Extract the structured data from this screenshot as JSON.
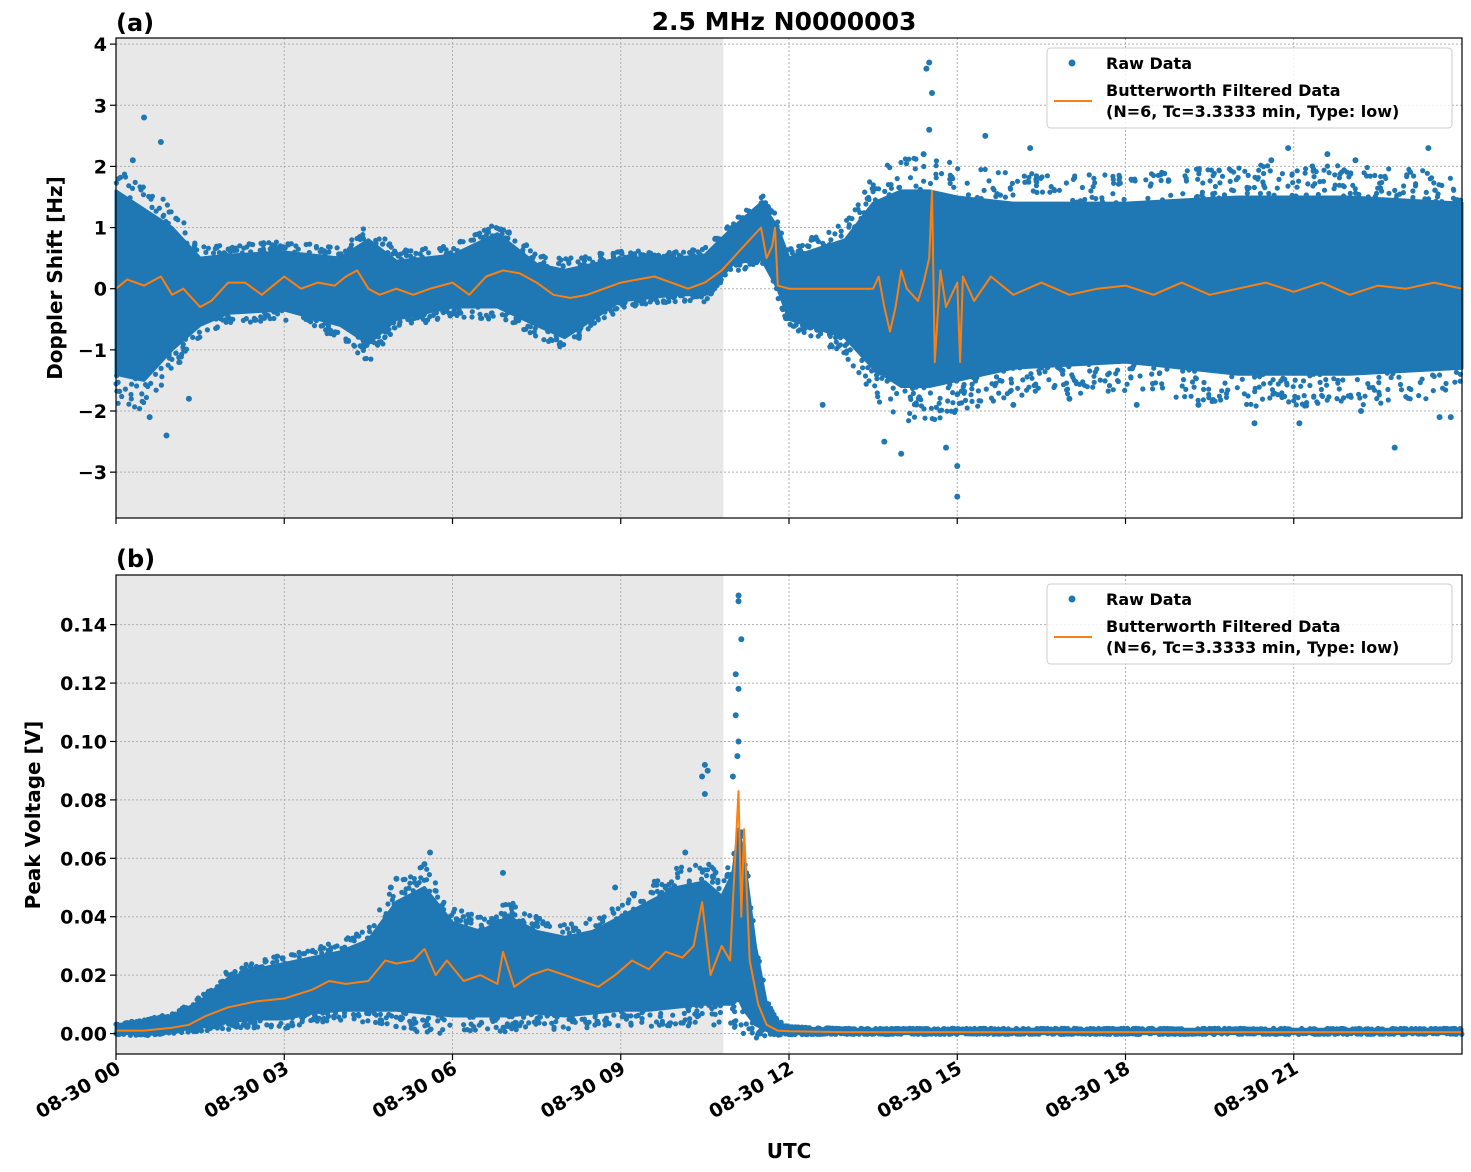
{
  "figure_title": "2.5 MHz N0000003",
  "x_axis": {
    "label": "UTC",
    "ticks": [
      "08-30 00",
      "08-30 03",
      "08-30 06",
      "08-30 09",
      "08-30 12",
      "08-30 15",
      "08-30 18",
      "08-30 21"
    ],
    "tick_hours": [
      0,
      3,
      6,
      9,
      12,
      15,
      18,
      21
    ],
    "range_hours": [
      0,
      24
    ]
  },
  "night_shading": {
    "start_hour": 0,
    "end_hour": 10.83,
    "color": "#e8e8e8"
  },
  "colors": {
    "raw": "#1f77b4",
    "filtered": "#ff7f0e",
    "grid": "#b0b0b0"
  },
  "legend": {
    "raw": "Raw Data",
    "filtered_line1": "Butterworth Filtered Data",
    "filtered_line2": "(N=6, Tc=3.3333 min, Type: low)"
  },
  "chart_data": [
    {
      "type": "scatter",
      "panel": "(a)",
      "title": "2.5 MHz N0000003",
      "xlabel": "UTC",
      "ylabel": "Doppler Shift [Hz]",
      "ylim": [
        -3.75,
        4.1
      ],
      "yticks": [
        -3,
        -2,
        -1,
        0,
        1,
        2,
        3,
        4
      ],
      "ytick_labels": [
        "−3",
        "−2",
        "−1",
        "0",
        "1",
        "2",
        "3",
        "4"
      ],
      "grid": true,
      "legend_position": "top-right",
      "series": [
        {
          "name": "Raw Data",
          "kind": "scatter-band",
          "x_hours": [
            0,
            0.5,
            1,
            1.5,
            2,
            3,
            4,
            4.5,
            5,
            6,
            6.8,
            7.5,
            8,
            9,
            10,
            10.5,
            11,
            11.5,
            11.8,
            12,
            13,
            13.5,
            14,
            14.5,
            15,
            16,
            18,
            20,
            22,
            24
          ],
          "upper": [
            1.6,
            1.3,
            1.0,
            0.5,
            0.55,
            0.6,
            0.5,
            0.8,
            0.45,
            0.55,
            0.9,
            0.4,
            0.3,
            0.5,
            0.5,
            0.55,
            1.0,
            1.4,
            1.0,
            0.5,
            0.8,
            1.4,
            1.6,
            1.6,
            1.5,
            1.4,
            1.4,
            1.5,
            1.5,
            1.4
          ],
          "lower": [
            -1.4,
            -1.5,
            -1.0,
            -0.6,
            -0.4,
            -0.35,
            -0.6,
            -0.9,
            -0.5,
            -0.3,
            -0.3,
            -0.6,
            -0.8,
            -0.2,
            -0.1,
            -0.1,
            0.4,
            0.5,
            0.0,
            -0.5,
            -0.8,
            -1.3,
            -1.6,
            -1.6,
            -1.5,
            -1.3,
            -1.2,
            -1.4,
            -1.4,
            -1.3
          ],
          "outliers": [
            [
              0.5,
              2.8
            ],
            [
              0.3,
              2.1
            ],
            [
              0.8,
              2.4
            ],
            [
              0.9,
              -2.4
            ],
            [
              0.6,
              -2.1
            ],
            [
              1.3,
              -1.8
            ],
            [
              14.5,
              3.7
            ],
            [
              14.45,
              3.6
            ],
            [
              14.55,
              3.2
            ],
            [
              14.5,
              2.6
            ],
            [
              14.4,
              2.2
            ],
            [
              15.0,
              -3.4
            ],
            [
              15.0,
              -2.9
            ],
            [
              14.8,
              -2.6
            ],
            [
              13.7,
              -2.5
            ],
            [
              14.0,
              -2.7
            ],
            [
              15.5,
              2.5
            ],
            [
              16.3,
              2.3
            ],
            [
              20.9,
              2.3
            ],
            [
              21.6,
              2.2
            ],
            [
              22.1,
              2.1
            ],
            [
              23.4,
              2.3
            ],
            [
              21.1,
              -2.2
            ],
            [
              22.2,
              -2.0
            ],
            [
              23.6,
              -2.1
            ],
            [
              20.3,
              -2.2
            ],
            [
              20.6,
              2.1
            ],
            [
              23.8,
              -2.1
            ],
            [
              19.3,
              -1.9
            ],
            [
              18.2,
              -1.9
            ],
            [
              12.6,
              -1.9
            ],
            [
              17.0,
              -1.8
            ],
            [
              16.0,
              -1.9
            ],
            [
              22.8,
              -2.6
            ]
          ]
        },
        {
          "name": "Butterworth Filtered Data (N=6, Tc=3.3333 min, Type: low)",
          "kind": "line",
          "x_hours": [
            0,
            0.2,
            0.5,
            0.8,
            1.0,
            1.2,
            1.5,
            1.7,
            2.0,
            2.3,
            2.6,
            3.0,
            3.3,
            3.6,
            3.9,
            4.1,
            4.3,
            4.5,
            4.7,
            5.0,
            5.3,
            5.6,
            6.0,
            6.3,
            6.6,
            6.9,
            7.2,
            7.5,
            7.8,
            8.1,
            8.4,
            8.7,
            9.0,
            9.3,
            9.6,
            9.9,
            10.2,
            10.5,
            10.8,
            11.1,
            11.3,
            11.5,
            11.6,
            11.7,
            11.75,
            11.8,
            12.0,
            12.3,
            12.5,
            12.7,
            13.0,
            13.3,
            13.5,
            13.6,
            13.7,
            13.8,
            13.9,
            14.0,
            14.1,
            14.3,
            14.4,
            14.5,
            14.55,
            14.6,
            14.7,
            14.8,
            15.0,
            15.05,
            15.1,
            15.3,
            15.6,
            16.0,
            16.5,
            17.0,
            17.5,
            18.0,
            18.5,
            19.0,
            19.5,
            20.0,
            20.5,
            21.0,
            21.5,
            22.0,
            22.5,
            23.0,
            23.5,
            24.0
          ],
          "values": [
            0.0,
            0.15,
            0.05,
            0.2,
            -0.1,
            0.0,
            -0.3,
            -0.2,
            0.1,
            0.1,
            -0.1,
            0.2,
            0.0,
            0.1,
            0.05,
            0.2,
            0.3,
            0.0,
            -0.1,
            0.0,
            -0.1,
            0.0,
            0.1,
            -0.1,
            0.2,
            0.3,
            0.25,
            0.1,
            -0.1,
            -0.15,
            -0.1,
            0.0,
            0.1,
            0.15,
            0.2,
            0.1,
            0.0,
            0.1,
            0.3,
            0.6,
            0.8,
            1.0,
            0.5,
            0.7,
            1.0,
            0.05,
            0.0,
            0.0,
            0.0,
            0.0,
            0.0,
            0.0,
            0.0,
            0.2,
            -0.3,
            -0.7,
            -0.3,
            0.3,
            0.0,
            -0.2,
            0.1,
            0.5,
            1.6,
            -1.2,
            0.3,
            -0.3,
            0.1,
            -1.2,
            0.2,
            -0.2,
            0.2,
            -0.1,
            0.1,
            -0.1,
            0.0,
            0.05,
            -0.1,
            0.1,
            -0.1,
            0.0,
            0.1,
            -0.05,
            0.1,
            -0.1,
            0.05,
            0.0,
            0.1,
            0.0
          ]
        }
      ]
    },
    {
      "type": "scatter",
      "panel": "(b)",
      "title": "",
      "xlabel": "UTC",
      "ylabel": "Peak Voltage [V]",
      "ylim": [
        -0.007,
        0.157
      ],
      "yticks": [
        0.0,
        0.02,
        0.04,
        0.06,
        0.08,
        0.1,
        0.12,
        0.14
      ],
      "ytick_labels": [
        "0.00",
        "0.02",
        "0.04",
        "0.06",
        "0.08",
        "0.10",
        "0.12",
        "0.14"
      ],
      "grid": true,
      "legend_position": "top-right",
      "series": [
        {
          "name": "Raw Data",
          "kind": "scatter-band",
          "x_hours": [
            0,
            0.5,
            1,
            1.5,
            2,
            2.5,
            3,
            3.5,
            4,
            4.5,
            5,
            5.5,
            6,
            6.5,
            7,
            7.5,
            8,
            8.5,
            9,
            9.5,
            10,
            10.5,
            10.8,
            11.0,
            11.1,
            11.2,
            11.4,
            11.6,
            11.8,
            12,
            13,
            24
          ],
          "upper": [
            0.003,
            0.004,
            0.006,
            0.011,
            0.019,
            0.022,
            0.024,
            0.026,
            0.028,
            0.032,
            0.045,
            0.05,
            0.038,
            0.035,
            0.04,
            0.035,
            0.033,
            0.035,
            0.04,
            0.045,
            0.05,
            0.052,
            0.047,
            0.055,
            0.07,
            0.06,
            0.03,
            0.01,
            0.004,
            0.002,
            0.0015,
            0.0015
          ],
          "lower": [
            0.0,
            0.0,
            0.001,
            0.002,
            0.004,
            0.005,
            0.005,
            0.007,
            0.008,
            0.008,
            0.008,
            0.007,
            0.006,
            0.006,
            0.006,
            0.007,
            0.006,
            0.007,
            0.008,
            0.008,
            0.009,
            0.01,
            0.01,
            0.01,
            0.012,
            0.008,
            0.003,
            0.001,
            0.0,
            0.0,
            0.0,
            0.0
          ],
          "outliers": [
            [
              11.1,
              0.15
            ],
            [
              11.1,
              0.148
            ],
            [
              11.15,
              0.135
            ],
            [
              11.05,
              0.123
            ],
            [
              11.1,
              0.118
            ],
            [
              11.05,
              0.109
            ],
            [
              11.1,
              0.1
            ],
            [
              11.08,
              0.095
            ],
            [
              10.5,
              0.092
            ],
            [
              10.55,
              0.09
            ],
            [
              10.45,
              0.088
            ],
            [
              10.5,
              0.082
            ],
            [
              11.0,
              0.088
            ],
            [
              5.6,
              0.062
            ],
            [
              5.5,
              0.058
            ],
            [
              5.0,
              0.053
            ],
            [
              6.9,
              0.055
            ],
            [
              10.15,
              0.062
            ],
            [
              9.8,
              0.05
            ],
            [
              8.9,
              0.05
            ],
            [
              4.9,
              0.05
            ]
          ]
        },
        {
          "name": "Butterworth Filtered Data (N=6, Tc=3.3333 min, Type: low)",
          "kind": "line",
          "x_hours": [
            0,
            0.5,
            1.0,
            1.3,
            1.6,
            2.0,
            2.5,
            3.0,
            3.5,
            3.8,
            4.1,
            4.5,
            4.8,
            5.0,
            5.3,
            5.5,
            5.7,
            5.9,
            6.2,
            6.5,
            6.8,
            6.9,
            7.1,
            7.4,
            7.7,
            8.0,
            8.3,
            8.6,
            8.9,
            9.2,
            9.5,
            9.8,
            10.1,
            10.3,
            10.45,
            10.6,
            10.8,
            10.95,
            11.0,
            11.1,
            11.15,
            11.2,
            11.3,
            11.45,
            11.6,
            11.8,
            12.0,
            13.0,
            15.0,
            24.0
          ],
          "values": [
            0.001,
            0.001,
            0.002,
            0.003,
            0.006,
            0.009,
            0.011,
            0.012,
            0.015,
            0.018,
            0.017,
            0.018,
            0.025,
            0.024,
            0.025,
            0.029,
            0.02,
            0.025,
            0.018,
            0.02,
            0.017,
            0.028,
            0.016,
            0.02,
            0.022,
            0.02,
            0.018,
            0.016,
            0.02,
            0.025,
            0.022,
            0.028,
            0.026,
            0.03,
            0.045,
            0.02,
            0.03,
            0.025,
            0.045,
            0.083,
            0.04,
            0.07,
            0.025,
            0.01,
            0.003,
            0.001,
            0.0008,
            0.0005,
            0.0005,
            0.0005
          ]
        }
      ]
    }
  ]
}
